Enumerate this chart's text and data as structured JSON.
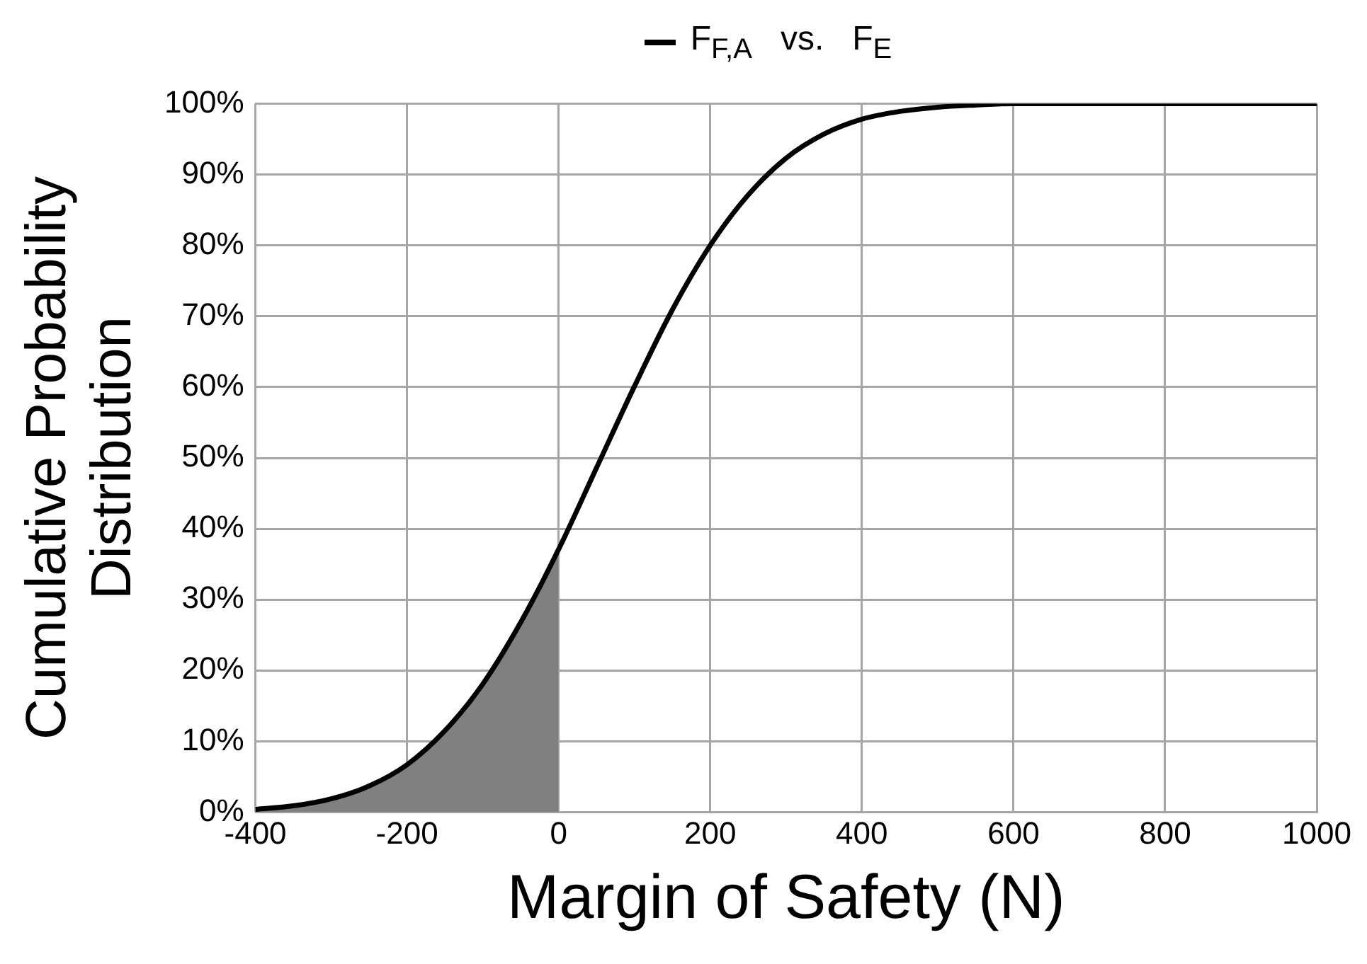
{
  "chart_data": {
    "type": "line",
    "xlabel": "Margin of Safety (N)",
    "ylabel": "Cumulative Probability Distribution",
    "xlim": [
      -400,
      1000
    ],
    "xticks": [
      -400,
      -200,
      0,
      200,
      400,
      600,
      800,
      1000
    ],
    "ylim": [
      0,
      100
    ],
    "yticks": [
      {
        "value": 0,
        "label": "0%"
      },
      {
        "value": 10,
        "label": "10%"
      },
      {
        "value": 20,
        "label": "20%"
      },
      {
        "value": 30,
        "label": "30%"
      },
      {
        "value": 40,
        "label": "40%"
      },
      {
        "value": 50,
        "label": "50%"
      },
      {
        "value": 60,
        "label": "60%"
      },
      {
        "value": 70,
        "label": "70%"
      },
      {
        "value": 80,
        "label": "80%"
      },
      {
        "value": 90,
        "label": "90%"
      },
      {
        "value": 100,
        "label": "100%"
      }
    ],
    "grid": true,
    "legend": "top",
    "marker": "none",
    "line_style": "solid",
    "series": [
      {
        "name": "F$_{F,A}$   vs.   F$_{E}$",
        "color": "#000000",
        "x": [
          -400,
          -350,
          -300,
          -250,
          -200,
          -150,
          -100,
          -50,
          0,
          50,
          100,
          150,
          200,
          250,
          300,
          350,
          400,
          450,
          500,
          550,
          600,
          800,
          1000
        ],
        "values": [
          0.4,
          0.9,
          1.9,
          3.7,
          6.7,
          11.5,
          18.1,
          26.8,
          37.1,
          48.6,
          60.1,
          70.9,
          80.0,
          87.1,
          92.3,
          95.7,
          97.8,
          98.9,
          99.5,
          99.8,
          100,
          100,
          100
        ]
      },
      {
        "type": "area",
        "color": "#808080",
        "x": [
          -400,
          -350,
          -300,
          -250,
          -200,
          -150,
          -100,
          -50,
          0
        ],
        "values": [
          0.4,
          0.9,
          1.9,
          3.7,
          6.7,
          11.5,
          18.1,
          26.8,
          37.1
        ]
      }
    ]
  }
}
